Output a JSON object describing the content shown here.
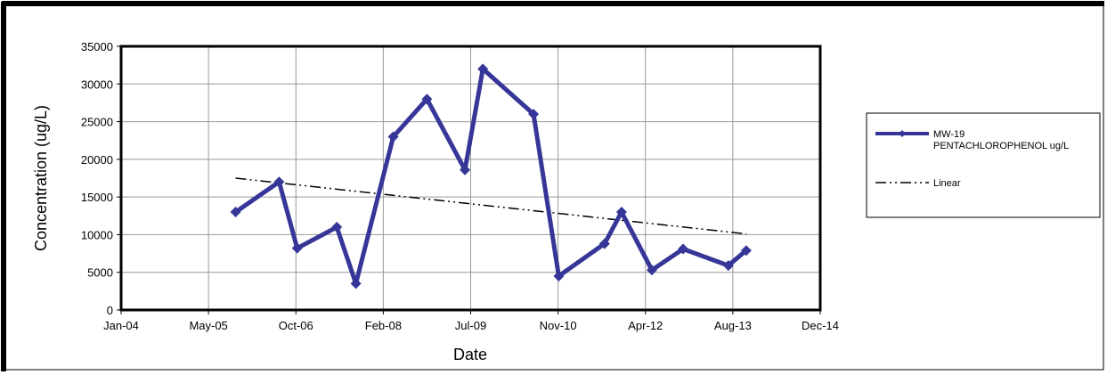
{
  "chart_data": {
    "type": "line",
    "xlabel": "Date",
    "ylabel": "Concentration (ug/L)",
    "xlim": [
      "2004-01-01",
      "2014-12-01"
    ],
    "ylim": [
      0,
      35000
    ],
    "x_ticks": [
      "Jan-04",
      "May-05",
      "Oct-06",
      "Feb-08",
      "Jul-09",
      "Nov-10",
      "Apr-12",
      "Aug-13",
      "Dec-14"
    ],
    "y_ticks": [
      "0",
      "5000",
      "10000",
      "15000",
      "20000",
      "25000",
      "30000",
      "35000"
    ],
    "grid": true,
    "legend_position": "right",
    "series": [
      {
        "name": "MW-19 PENTACHLOROPHENOL ug/L",
        "name_lines": [
          "MW-19",
          "PENTACHLOROPHENOL ug/L"
        ],
        "color": "#363698",
        "marker": "diamond",
        "points": [
          {
            "x": "2005-10-15",
            "y": 13000
          },
          {
            "x": "2006-06-20",
            "y": 17000
          },
          {
            "x": "2006-10-01",
            "y": 8200
          },
          {
            "x": "2007-05-15",
            "y": 11000
          },
          {
            "x": "2007-09-01",
            "y": 3500
          },
          {
            "x": "2008-04-01",
            "y": 23000
          },
          {
            "x": "2008-10-10",
            "y": 28000
          },
          {
            "x": "2009-05-15",
            "y": 18600
          },
          {
            "x": "2009-08-25",
            "y": 32000
          },
          {
            "x": "2010-06-10",
            "y": 26000
          },
          {
            "x": "2010-11-01",
            "y": 4500
          },
          {
            "x": "2011-07-20",
            "y": 8800
          },
          {
            "x": "2011-10-25",
            "y": 13000
          },
          {
            "x": "2012-04-15",
            "y": 5300
          },
          {
            "x": "2012-10-10",
            "y": 8100
          },
          {
            "x": "2013-06-25",
            "y": 5900
          },
          {
            "x": "2013-10-05",
            "y": 7900
          }
        ]
      },
      {
        "name": "Linear",
        "color": "#000000",
        "style": "dash-dot-dot",
        "points": [
          {
            "x": "2005-10-15",
            "y": 17500
          },
          {
            "x": "2013-10-05",
            "y": 10100
          }
        ]
      }
    ]
  }
}
